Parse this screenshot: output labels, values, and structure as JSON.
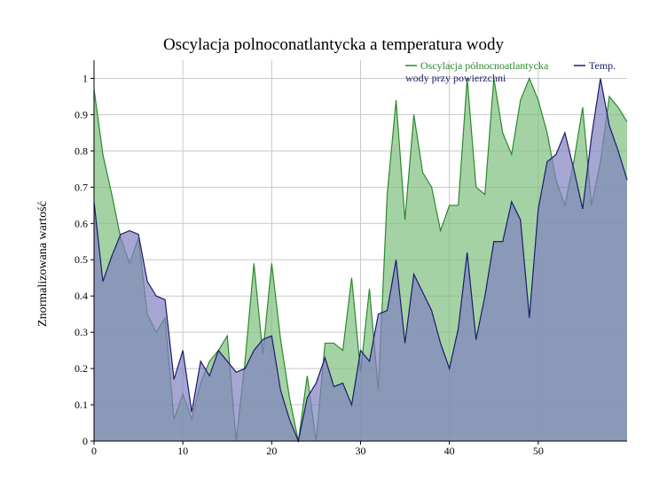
{
  "chart_data": {
    "type": "area",
    "title": "Oscylacja polnoconatlantycka a temperatura wody",
    "xlabel": "",
    "ylabel": "Znormalizowana wartość",
    "xlim": [
      0,
      60
    ],
    "ylim": [
      0,
      1.05
    ],
    "x_ticks": [
      0,
      10,
      20,
      30,
      40,
      50
    ],
    "y_ticks": [
      0,
      0.1,
      0.2,
      0.3,
      0.4,
      0.5,
      0.6,
      0.7,
      0.8,
      0.9,
      1
    ],
    "y_tick_labels": [
      "0",
      "0.1",
      "0.2",
      "0.3",
      "0.4",
      "0.5",
      "0.6",
      "0.7",
      "0.8",
      "0.9",
      "1"
    ],
    "grid": true,
    "legend_position": "top-right",
    "x": [
      0,
      1,
      2,
      3,
      4,
      5,
      6,
      7,
      8,
      9,
      10,
      11,
      12,
      13,
      14,
      15,
      16,
      17,
      18,
      19,
      20,
      21,
      22,
      23,
      24,
      25,
      26,
      27,
      28,
      29,
      30,
      31,
      32,
      33,
      34,
      35,
      36,
      37,
      38,
      39,
      40,
      41,
      42,
      43,
      44,
      45,
      46,
      47,
      48,
      49,
      50,
      51,
      52,
      53,
      54,
      55,
      56,
      57,
      58,
      59,
      60
    ],
    "series": [
      {
        "name": "Oscylacja północnoatlantycka",
        "color": "#2a8a2a",
        "fill": "#7fbf7f",
        "values": [
          0.97,
          0.79,
          0.68,
          0.56,
          0.49,
          0.56,
          0.35,
          0.3,
          0.34,
          0.06,
          0.13,
          0.06,
          0.16,
          0.22,
          0.25,
          0.29,
          0.0,
          0.22,
          0.49,
          0.24,
          0.49,
          0.28,
          0.12,
          0.0,
          0.18,
          0.0,
          0.27,
          0.27,
          0.25,
          0.45,
          0.19,
          0.42,
          0.14,
          0.68,
          0.94,
          0.61,
          0.9,
          0.74,
          0.7,
          0.58,
          0.65,
          0.65,
          1.0,
          0.7,
          0.68,
          1.0,
          0.85,
          0.79,
          0.94,
          1.0,
          0.94,
          0.85,
          0.72,
          0.65,
          0.77,
          0.92,
          0.65,
          0.77,
          0.95,
          0.92,
          0.88
        ]
      },
      {
        "name": "Temp. wody przy powierzchni",
        "color": "#1a1a6e",
        "fill": "#8080c0",
        "values": [
          0.66,
          0.44,
          0.51,
          0.57,
          0.58,
          0.57,
          0.44,
          0.4,
          0.39,
          0.17,
          0.25,
          0.08,
          0.22,
          0.18,
          0.25,
          0.22,
          0.19,
          0.2,
          0.25,
          0.28,
          0.29,
          0.14,
          0.06,
          0.0,
          0.12,
          0.16,
          0.23,
          0.15,
          0.16,
          0.1,
          0.25,
          0.22,
          0.35,
          0.36,
          0.5,
          0.27,
          0.46,
          0.41,
          0.36,
          0.27,
          0.2,
          0.31,
          0.52,
          0.28,
          0.4,
          0.55,
          0.55,
          0.66,
          0.61,
          0.34,
          0.64,
          0.77,
          0.79,
          0.85,
          0.75,
          0.64,
          0.84,
          1.0,
          0.87,
          0.8,
          0.72
        ]
      }
    ]
  }
}
